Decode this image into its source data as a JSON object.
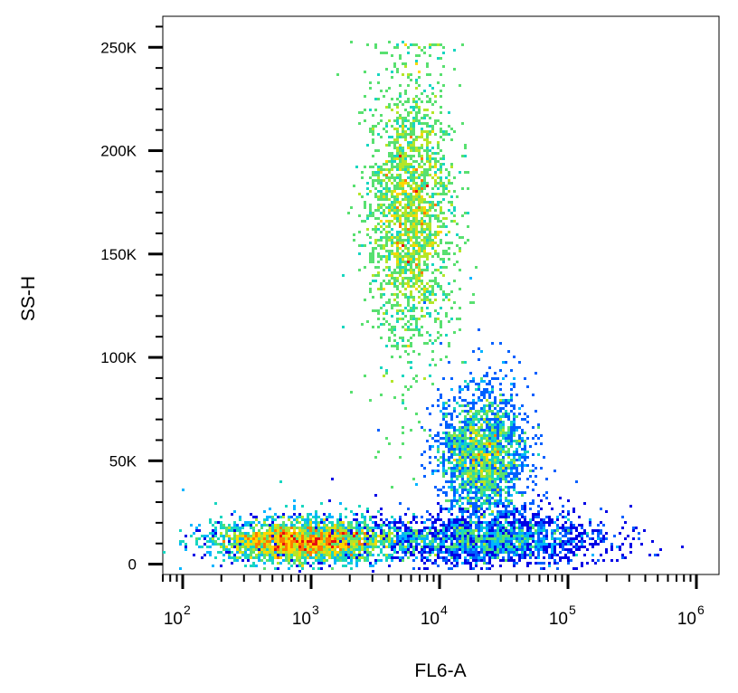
{
  "chart_data": {
    "type": "scatter",
    "subtype": "flow-cytometry density dot plot",
    "xlabel": "FL6-A",
    "ylabel": "SS-H",
    "x_scale": "log",
    "y_scale": "linear",
    "xlim": [
      70,
      1500000
    ],
    "ylim": [
      -5000,
      265000
    ],
    "x_ticks": [
      {
        "value": 100,
        "base": "10",
        "exp": "2"
      },
      {
        "value": 1000,
        "base": "10",
        "exp": "3"
      },
      {
        "value": 10000,
        "base": "10",
        "exp": "4"
      },
      {
        "value": 100000,
        "base": "10",
        "exp": "5"
      },
      {
        "value": 1000000,
        "base": "10",
        "exp": "6"
      }
    ],
    "y_ticks": [
      {
        "value": 0,
        "label": "0"
      },
      {
        "value": 50000,
        "label": "50K"
      },
      {
        "value": 100000,
        "label": "100K"
      },
      {
        "value": 150000,
        "label": "150K"
      },
      {
        "value": 200000,
        "label": "200K"
      },
      {
        "value": 250000,
        "label": "250K"
      }
    ],
    "grid": false,
    "legend": "none",
    "color_scale": [
      "#0000e6",
      "#0060ff",
      "#00b4ff",
      "#18d6c0",
      "#58e070",
      "#b4e628",
      "#ffd700",
      "#ff7a00",
      "#e61010"
    ],
    "populations": [
      {
        "x_center": 900,
        "y_center": 11000,
        "x_spread_decades": 0.35,
        "y_spread": 5000,
        "relative_count": 0.3
      },
      {
        "x_center": 6000,
        "y_center": 170000,
        "x_spread_decades": 0.17,
        "y_spread": 32000,
        "relative_count": 0.38
      },
      {
        "x_center": 22000,
        "y_center": 53000,
        "x_spread_decades": 0.17,
        "y_spread": 15000,
        "relative_count": 0.17
      },
      {
        "x_center": 25000,
        "y_center": 12000,
        "x_spread_decades": 0.45,
        "y_spread": 6000,
        "relative_count": 0.09
      }
    ]
  }
}
